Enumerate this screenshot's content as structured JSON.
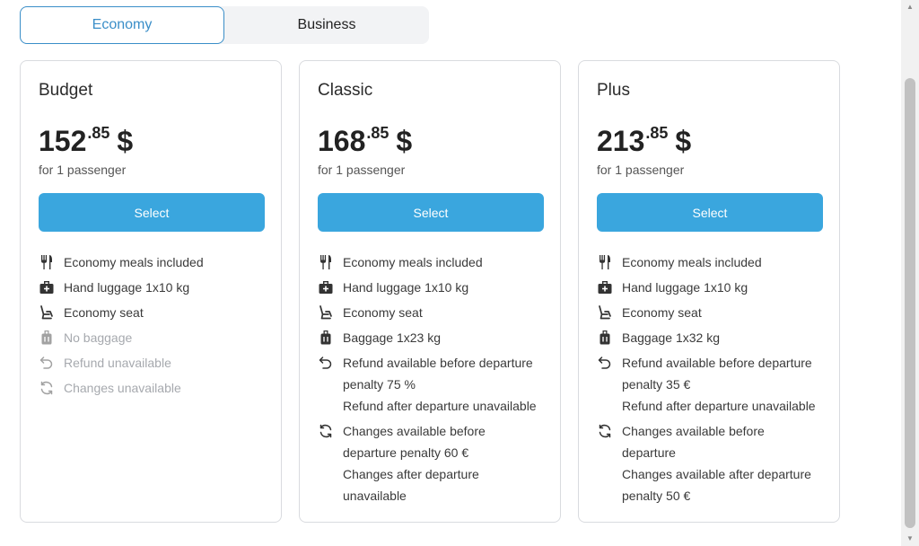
{
  "tabs": [
    {
      "label": "Economy",
      "active": true
    },
    {
      "label": "Business",
      "active": false
    }
  ],
  "cards": [
    {
      "title": "Budget",
      "price_whole": "152",
      "price_cents": ".85",
      "currency": "$",
      "passengers": "for 1 passenger",
      "select_label": "Select",
      "features": [
        {
          "icon": "meal-icon",
          "lines": [
            "Economy meals included"
          ],
          "available": true
        },
        {
          "icon": "hand-luggage-icon",
          "lines": [
            "Hand luggage 1x10 kg"
          ],
          "available": true
        },
        {
          "icon": "seat-icon",
          "lines": [
            "Economy seat"
          ],
          "available": true
        },
        {
          "icon": "baggage-icon",
          "lines": [
            "No baggage"
          ],
          "available": false
        },
        {
          "icon": "refund-icon",
          "lines": [
            "Refund unavailable"
          ],
          "available": false
        },
        {
          "icon": "changes-icon",
          "lines": [
            "Changes unavailable"
          ],
          "available": false
        }
      ]
    },
    {
      "title": "Classic",
      "price_whole": "168",
      "price_cents": ".85",
      "currency": "$",
      "passengers": "for 1 passenger",
      "select_label": "Select",
      "features": [
        {
          "icon": "meal-icon",
          "lines": [
            "Economy meals included"
          ],
          "available": true
        },
        {
          "icon": "hand-luggage-icon",
          "lines": [
            "Hand luggage 1x10 kg"
          ],
          "available": true
        },
        {
          "icon": "seat-icon",
          "lines": [
            "Economy seat"
          ],
          "available": true
        },
        {
          "icon": "baggage-icon",
          "lines": [
            "Baggage 1x23 kg"
          ],
          "available": true
        },
        {
          "icon": "refund-icon",
          "lines": [
            "Refund available before departure",
            "penalty 75 %",
            "Refund after departure unavailable"
          ],
          "available": true
        },
        {
          "icon": "changes-icon",
          "lines": [
            "Changes available before",
            "departure penalty 60 €",
            "Changes after departure",
            "unavailable"
          ],
          "available": true
        }
      ]
    },
    {
      "title": "Plus",
      "price_whole": "213",
      "price_cents": ".85",
      "currency": "$",
      "passengers": "for 1 passenger",
      "select_label": "Select",
      "features": [
        {
          "icon": "meal-icon",
          "lines": [
            "Economy meals included"
          ],
          "available": true
        },
        {
          "icon": "hand-luggage-icon",
          "lines": [
            "Hand luggage 1x10 kg"
          ],
          "available": true
        },
        {
          "icon": "seat-icon",
          "lines": [
            "Economy seat"
          ],
          "available": true
        },
        {
          "icon": "baggage-icon",
          "lines": [
            "Baggage 1x32 kg"
          ],
          "available": true
        },
        {
          "icon": "refund-icon",
          "lines": [
            "Refund available before departure",
            "penalty 35 €",
            "Refund after departure unavailable"
          ],
          "available": true
        },
        {
          "icon": "changes-icon",
          "lines": [
            "Changes available before",
            "departure",
            "Changes available after departure",
            "penalty 50 €"
          ],
          "available": true
        }
      ]
    }
  ],
  "colors": {
    "accent": "#3aa6de",
    "tab_active": "#3a8ec8",
    "text": "#2b2b2b",
    "muted": "#a6a9ae",
    "border": "#d9dbdf"
  }
}
